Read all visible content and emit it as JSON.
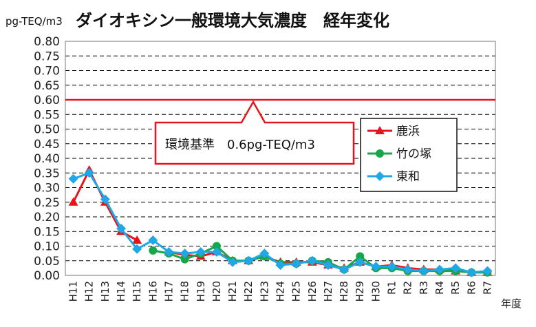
{
  "chart_data": {
    "type": "line",
    "title": "ダイオキシン一般環境大気濃度　経年変化",
    "unit_label": "pg-TEQ/m3",
    "xlabel": "年度",
    "ylabel": "",
    "ylim": [
      0,
      0.8
    ],
    "ytick_step": 0.05,
    "yticks": [
      "0.00",
      "0.05",
      "0.10",
      "0.15",
      "0.20",
      "0.25",
      "0.30",
      "0.35",
      "0.40",
      "0.45",
      "0.50",
      "0.55",
      "0.60",
      "0.65",
      "0.70",
      "0.75",
      "0.80"
    ],
    "grid": true,
    "categories": [
      "H11",
      "H12",
      "H13",
      "H14",
      "H15",
      "H16",
      "H17",
      "H18",
      "H19",
      "H20",
      "H21",
      "H22",
      "H23",
      "H24",
      "H25",
      "H26",
      "H27",
      "H28",
      "H29",
      "H30",
      "R1",
      "R2",
      "R3",
      "R4",
      "R5",
      "R6",
      "R7"
    ],
    "series": [
      {
        "name": "鹿浜",
        "color": "#e8141b",
        "marker": "triangle",
        "values": [
          0.25,
          0.36,
          0.25,
          0.15,
          0.12,
          null,
          0.08,
          0.07,
          0.065,
          0.08,
          0.05,
          0.05,
          0.065,
          0.045,
          0.045,
          0.045,
          0.035,
          0.025,
          0.045,
          0.03,
          0.035,
          0.025,
          0.02,
          0.02,
          0.015,
          0.01,
          0.01
        ]
      },
      {
        "name": "竹の塚",
        "color": "#14a84a",
        "marker": "circle",
        "values": [
          null,
          null,
          null,
          null,
          null,
          0.085,
          0.075,
          0.055,
          0.075,
          0.1,
          0.05,
          0.05,
          0.065,
          0.04,
          0.04,
          0.05,
          0.045,
          0.02,
          0.065,
          0.025,
          0.025,
          0.015,
          0.015,
          0.015,
          0.015,
          0.01,
          0.01
        ]
      },
      {
        "name": "東和",
        "color": "#1fa7e8",
        "marker": "diamond",
        "values": [
          0.33,
          0.35,
          0.26,
          0.16,
          0.09,
          0.12,
          0.08,
          0.075,
          0.08,
          0.08,
          0.045,
          0.05,
          0.075,
          0.035,
          0.04,
          0.05,
          0.035,
          0.02,
          0.045,
          0.03,
          0.03,
          0.02,
          0.015,
          0.02,
          0.025,
          0.01,
          0.015
        ]
      }
    ],
    "reference_line": {
      "value": 0.6,
      "color": "#e8141b",
      "label": "環境基準　0.6pg-TEQ/m3"
    },
    "legend_position": "right"
  }
}
